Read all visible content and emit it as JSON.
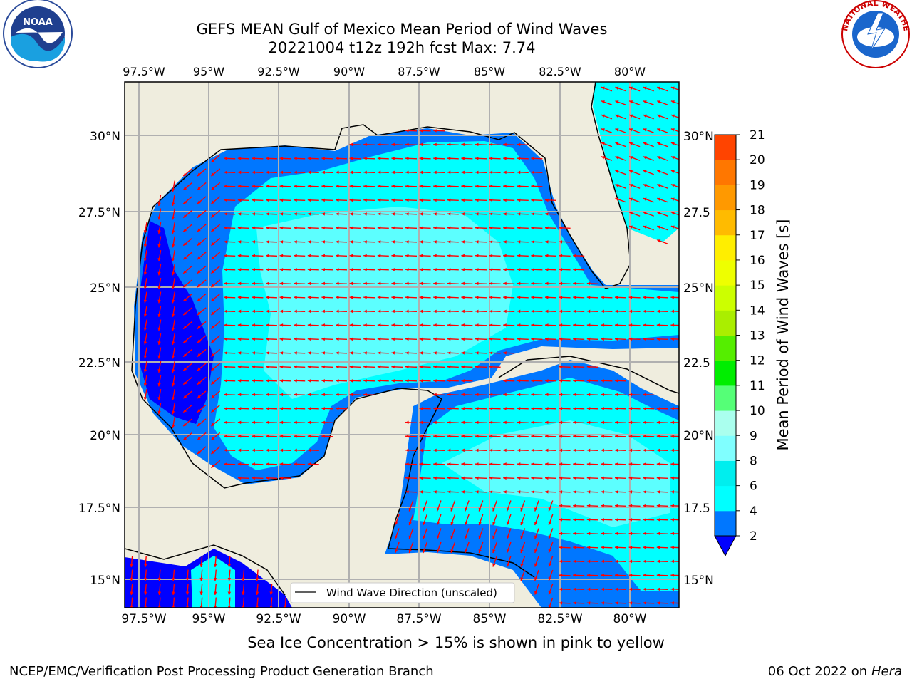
{
  "title": {
    "line1": "GEFS MEAN Gulf of Mexico Mean Period of Wind Waves",
    "line2": "20221004 t12z 192h fcst   Max: 7.74"
  },
  "logos": {
    "left": "NOAA",
    "right_text": "NATIONAL WEATHER SERVICE"
  },
  "map": {
    "lon_ticks": [
      "97.5°W",
      "95°W",
      "92.5°W",
      "90°W",
      "87.5°W",
      "85°W",
      "82.5°W",
      "80°W"
    ],
    "lat_ticks": [
      "30°N",
      "27.5°N",
      "25°N",
      "22.5°N",
      "20°N",
      "17.5°N",
      "15°N"
    ],
    "lat_ticks_right": [
      "30°N",
      "27.5",
      "25°N",
      "22.5",
      "20°N",
      "17.5",
      "15°N"
    ],
    "legend": "Wind Wave Direction (unscaled)",
    "arrow_color": "#ff0000",
    "land_color": "#efedde"
  },
  "colorbar": {
    "label": "Mean Period of Wind Waves [s]",
    "ticks": [
      "2",
      "4",
      "6",
      "8",
      "9",
      "10",
      "11",
      "12",
      "13",
      "14",
      "15",
      "16",
      "17",
      "18",
      "19",
      "20",
      "21"
    ],
    "colors": [
      "#0077ff",
      "#00ffff",
      "#00eeee",
      "#80ffff",
      "#aaffee",
      "#55ff77",
      "#00ee00",
      "#55ee00",
      "#aaee00",
      "#ccff00",
      "#eeff00",
      "#ffee00",
      "#ffbb00",
      "#ff9900",
      "#ff7700",
      "#ff4400",
      "#ff0000"
    ],
    "under_color": "#0000ff"
  },
  "note": "Sea Ice Concentration > 15% is shown in pink to yellow",
  "footer": {
    "left": "NCEP/EMC/Verification Post Processing Product Generation Branch",
    "right_prefix": "06 Oct 2022 on ",
    "right_machine": "Hera"
  }
}
